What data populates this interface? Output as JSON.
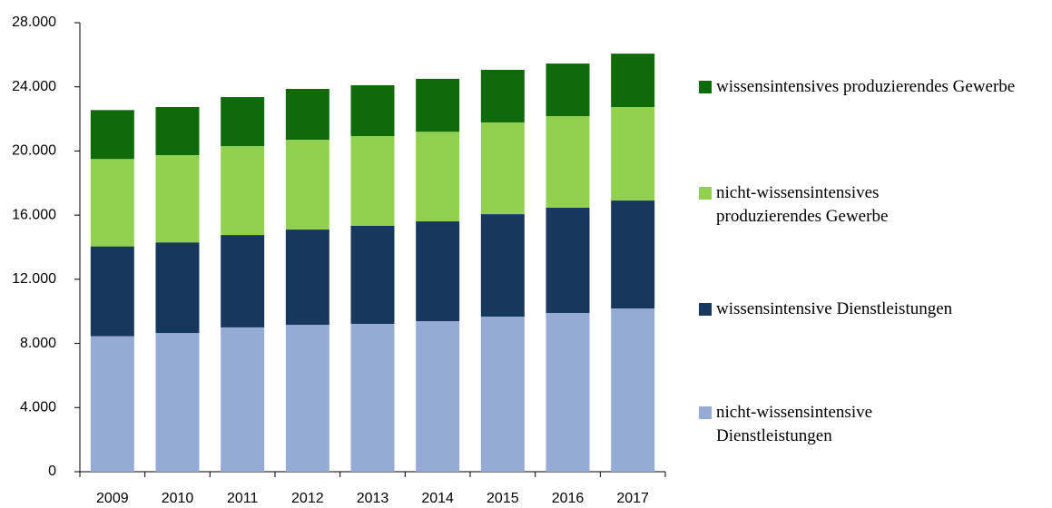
{
  "chart_data": {
    "type": "stacked_bar",
    "categories": [
      "2009",
      "2010",
      "2011",
      "2012",
      "2013",
      "2014",
      "2015",
      "2016",
      "2017"
    ],
    "series": [
      {
        "name": "nicht-wissensintensive Dienstleistungen",
        "color": "#95abd5",
        "values": [
          8450,
          8650,
          9000,
          9160,
          9220,
          9390,
          9670,
          9900,
          10180
        ]
      },
      {
        "name": "wissensintensive Dienstleistungen",
        "color": "#17375e",
        "values": [
          5600,
          5650,
          5760,
          5940,
          6110,
          6220,
          6390,
          6560,
          6730
        ]
      },
      {
        "name": "nicht-wissensintensives produzierendes Gewerbe",
        "color": "#92d050",
        "values": [
          5450,
          5440,
          5540,
          5600,
          5600,
          5590,
          5720,
          5710,
          5830
        ]
      },
      {
        "name": "wissensintensives produzierendes Gewerbe",
        "color": "#0f6a0a",
        "values": [
          3050,
          3000,
          3060,
          3170,
          3170,
          3300,
          3280,
          3280,
          3330
        ]
      }
    ],
    "ylim": [
      0,
      28000
    ],
    "yticks": [
      0,
      {
        "value": 4000,
        "label": "4.000"
      },
      {
        "value": 8000,
        "label": "8.000"
      },
      {
        "value": 12000,
        "label": "12.000"
      },
      {
        "value": 16000,
        "label": "16.000"
      },
      {
        "value": 20000,
        "label": "20.000"
      },
      {
        "value": 24000,
        "label": "24.000"
      },
      {
        "value": 28000,
        "label": "28.000"
      }
    ],
    "legend": "right"
  }
}
